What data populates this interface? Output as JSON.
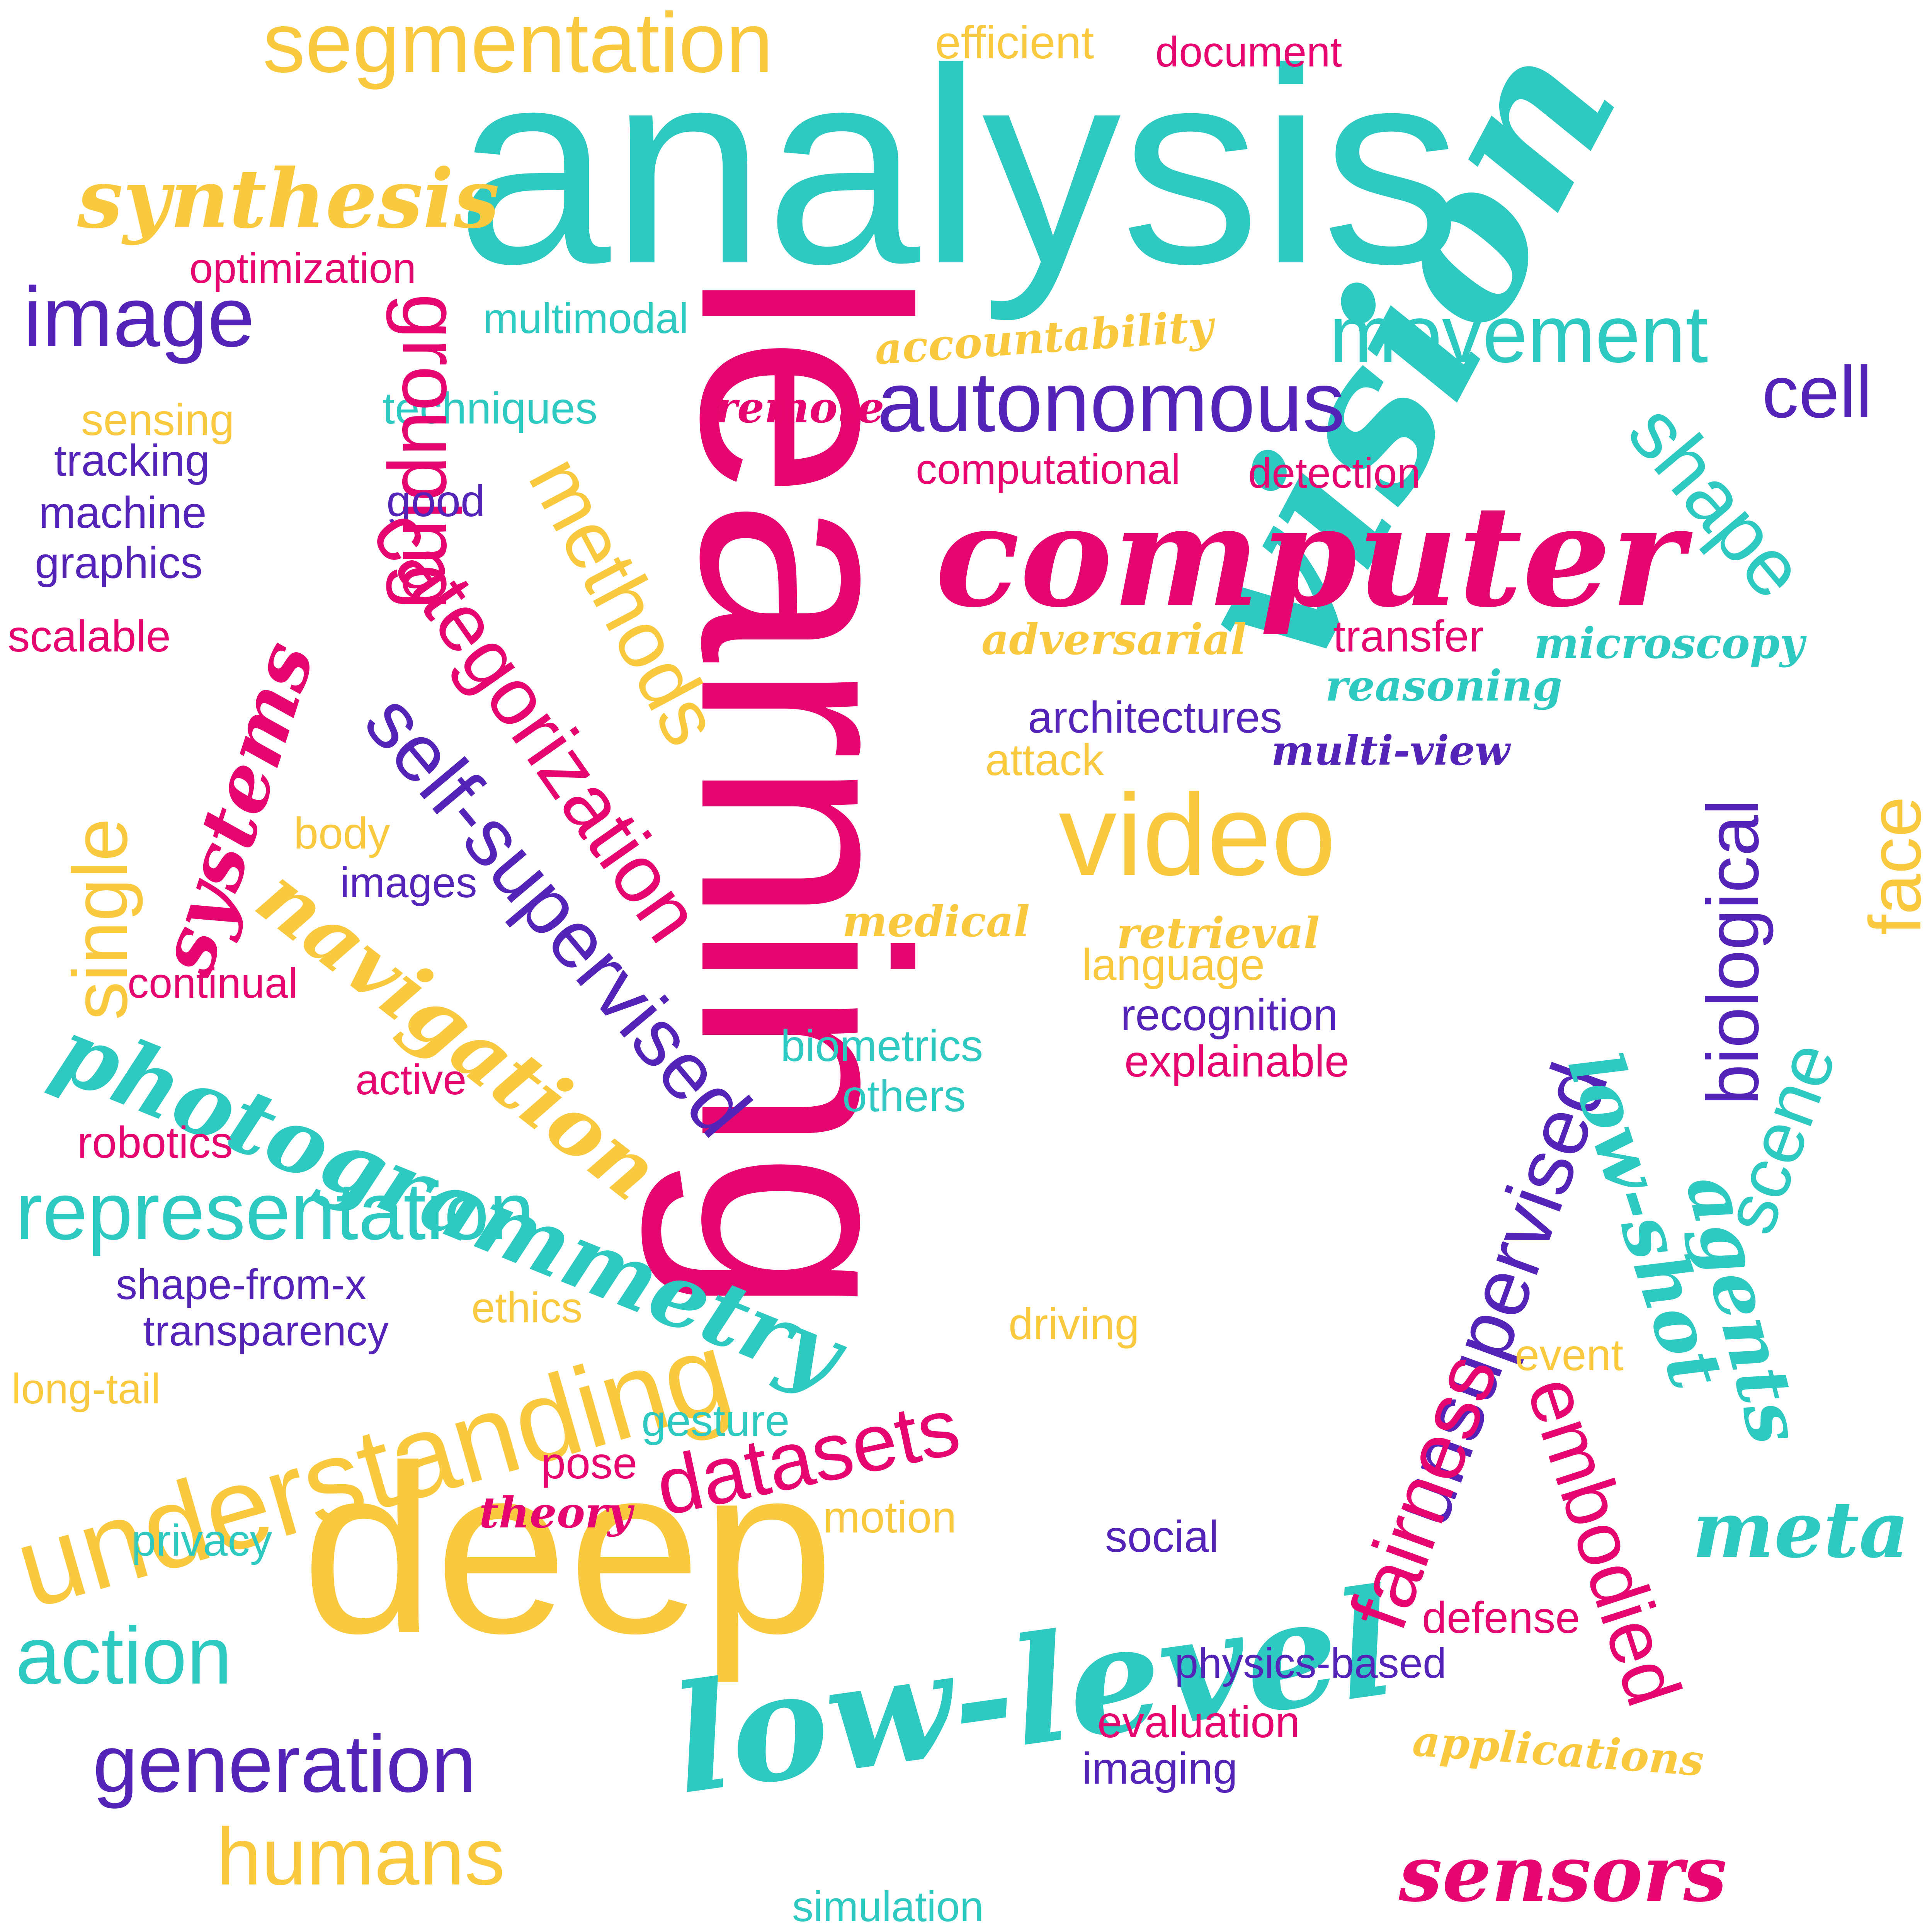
{
  "colors": {
    "teal": "#2ECAC2",
    "pink": "#E5066F",
    "yellow": "#F9C93F",
    "purple": "#5423B8",
    "background": "#FFFFFF"
  },
  "words": [
    "analysis",
    "learning",
    "vision",
    "computer",
    "deep",
    "low-level",
    "understanding",
    "segmentation",
    "efficient",
    "document",
    "synthesis",
    "optimization",
    "image",
    "multimodal",
    "movement",
    "accountability",
    "remote",
    "autonomous",
    "cell",
    "sensing",
    "techniques",
    "tracking",
    "grouping",
    "machine",
    "graphics",
    "good",
    "computational",
    "detection",
    "shape",
    "scalable",
    "categorization",
    "methods",
    "adversarial",
    "transfer",
    "microscopy",
    "reasoning",
    "systems",
    "single",
    "architectures",
    "multi-view",
    "attack",
    "self-supervised",
    "video",
    "biological",
    "face",
    "body",
    "images",
    "navigation",
    "medical",
    "retrieval",
    "language",
    "continual",
    "recognition",
    "explainable",
    "biometrics",
    "others",
    "photogrammetry",
    "active",
    "robotics",
    "unsupervised",
    "scene",
    "low-shot",
    "agents",
    "representation",
    "shape-from-x",
    "ethics",
    "transparency",
    "driving",
    "event",
    "long-tail",
    "gesture",
    "datasets",
    "pose",
    "theory",
    "fairness",
    "embodied",
    "motion",
    "meta",
    "privacy",
    "social",
    "defense",
    "action",
    "physics-based",
    "evaluation",
    "generation",
    "imaging",
    "applications",
    "humans",
    "sensors",
    "simulation"
  ]
}
